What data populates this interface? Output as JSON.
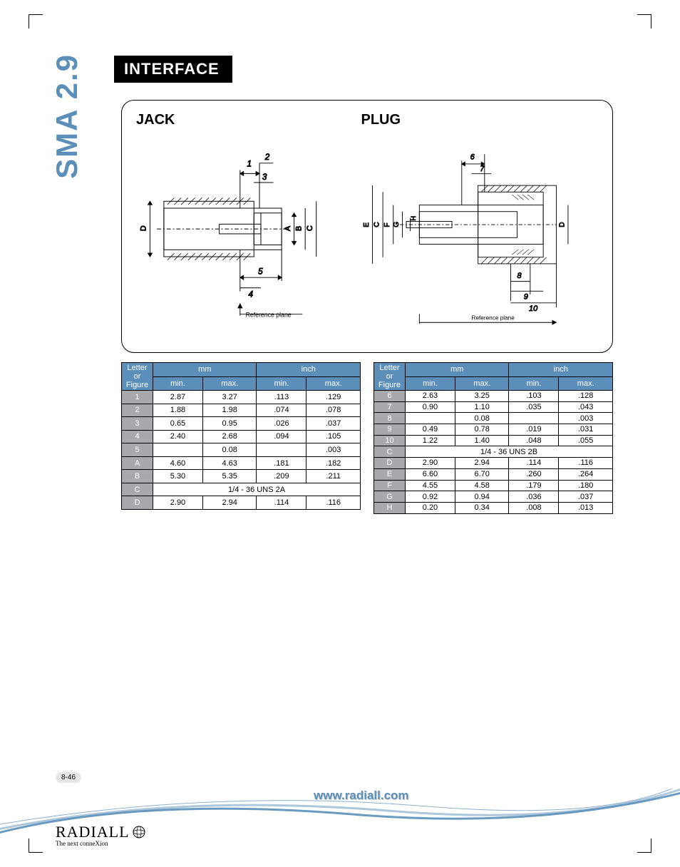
{
  "side_label": "SMA 2.9",
  "heading": "INTERFACE",
  "diagrams": {
    "jack": {
      "title": "JACK",
      "ref_plane": "Reference plane",
      "num_labels": [
        "1",
        "2",
        "3",
        "4",
        "5"
      ],
      "letter_labels": [
        "A",
        "B",
        "C",
        "D"
      ]
    },
    "plug": {
      "title": "PLUG",
      "ref_plane": "Reference plane",
      "num_labels": [
        "6",
        "7",
        "8",
        "9",
        "10"
      ],
      "letter_labels": [
        "C",
        "D",
        "E",
        "F",
        "G",
        "H"
      ]
    }
  },
  "colors": {
    "blue": "#5b8fb9",
    "grey": "#a7a9ac",
    "black": "#000000"
  },
  "table_headers": {
    "letter": "Letter or Figure",
    "mm": "mm",
    "inch": "inch",
    "min": "min.",
    "max": "max."
  },
  "jack_table": [
    {
      "k": "1",
      "mm_min": "2.87",
      "mm_max": "3.27",
      "in_min": ".113",
      "in_max": ".129"
    },
    {
      "k": "2",
      "mm_min": "1.88",
      "mm_max": "1.98",
      "in_min": ".074",
      "in_max": ".078"
    },
    {
      "k": "3",
      "mm_min": "0.65",
      "mm_max": "0.95",
      "in_min": ".026",
      "in_max": ".037"
    },
    {
      "k": "4",
      "mm_min": "2.40",
      "mm_max": "2.68",
      "in_min": ".094",
      "in_max": ".105"
    },
    {
      "k": "5",
      "mm_min": "",
      "mm_max": "0.08",
      "in_min": "",
      "in_max": ".003"
    },
    {
      "k": "A",
      "mm_min": "4.60",
      "mm_max": "4.63",
      "in_min": ".181",
      "in_max": ".182"
    },
    {
      "k": "B",
      "mm_min": "5.30",
      "mm_max": "5.35",
      "in_min": ".209",
      "in_max": ".211"
    },
    {
      "k": "C",
      "span": "1/4 - 36 UNS 2A"
    },
    {
      "k": "D",
      "mm_min": "2.90",
      "mm_max": "2.94",
      "in_min": ".114",
      "in_max": ".116"
    }
  ],
  "plug_table": [
    {
      "k": "6",
      "mm_min": "2.63",
      "mm_max": "3.25",
      "in_min": ".103",
      "in_max": ".128"
    },
    {
      "k": "7",
      "mm_min": "0.90",
      "mm_max": "1.10",
      "in_min": ".035",
      "in_max": ".043"
    },
    {
      "k": "8",
      "mm_min": "",
      "mm_max": "0.08",
      "in_min": "",
      "in_max": ".003"
    },
    {
      "k": "9",
      "mm_min": "0.49",
      "mm_max": "0.78",
      "in_min": ".019",
      "in_max": ".031"
    },
    {
      "k": "10",
      "mm_min": "1.22",
      "mm_max": "1.40",
      "in_min": ".048",
      "in_max": ".055"
    },
    {
      "k": "C",
      "span": "1/4 - 36 UNS 2B"
    },
    {
      "k": "D",
      "mm_min": "2.90",
      "mm_max": "2.94",
      "in_min": ".114",
      "in_max": ".116"
    },
    {
      "k": "E",
      "mm_min": "6.60",
      "mm_max": "6.70",
      "in_min": ".260",
      "in_max": ".264"
    },
    {
      "k": "F",
      "mm_min": "4.55",
      "mm_max": "4.58",
      "in_min": ".179",
      "in_max": ".180"
    },
    {
      "k": "G",
      "mm_min": "0.92",
      "mm_max": "0.94",
      "in_min": ".036",
      "in_max": ".037"
    },
    {
      "k": "H",
      "mm_min": "0.20",
      "mm_max": "0.34",
      "in_min": ".008",
      "in_max": ".013"
    }
  ],
  "page_num": "8-46",
  "footer_url": "www.radiall.com",
  "logo": {
    "name": "RADIALL",
    "tag": "The next conneXion"
  }
}
